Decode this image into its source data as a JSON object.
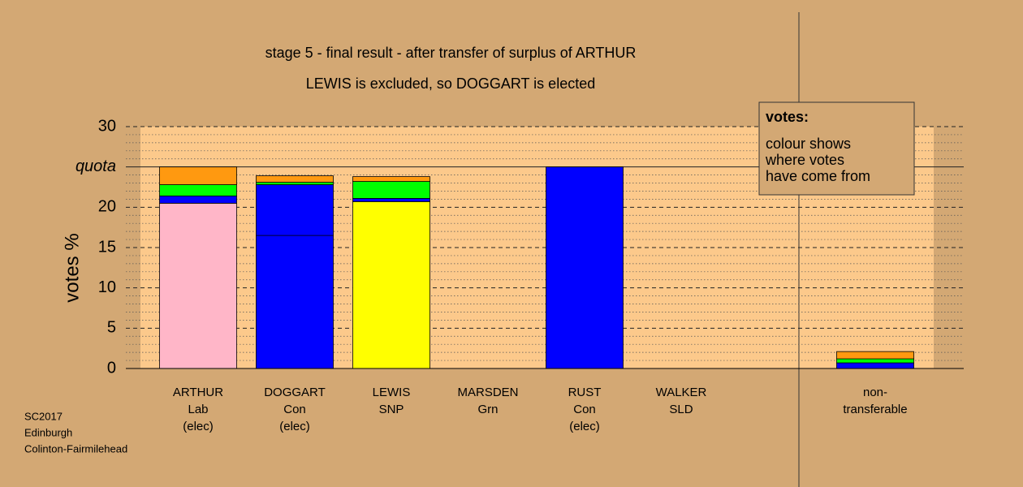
{
  "chart_data": {
    "type": "stacked-bar",
    "title": "stage 5 - final result - after transfer of surplus of ARTHUR",
    "subtitle": "LEWIS is excluded, so DOGGART is elected",
    "y_label": "votes %",
    "categories": [
      [
        "ARTHUR",
        "Lab",
        "(elec)"
      ],
      [
        "DOGGART",
        "Con",
        "(elec)"
      ],
      [
        "LEWIS",
        "SNP"
      ],
      [
        "MARSDEN",
        "Grn"
      ],
      [
        "RUST",
        "Con",
        "(elec)"
      ],
      [
        "WALKER",
        "SLD"
      ],
      [
        "non-",
        "transferable"
      ]
    ],
    "stacks": [
      [
        {
          "value": 20.5,
          "color": "#ffb6c8"
        },
        {
          "value": 0.9,
          "color": "#0000ff"
        },
        {
          "value": 1.4,
          "color": "#00ff00"
        },
        {
          "value": 2.2,
          "color": "#ff9910"
        }
      ],
      [
        {
          "value": 16.5,
          "color": "#0000ff"
        },
        {
          "value": 6.3,
          "color": "#0000ff"
        },
        {
          "value": 0.3,
          "color": "#00ff00"
        },
        {
          "value": 0.8,
          "color": "#ff9910"
        }
      ],
      [
        {
          "value": 20.7,
          "color": "#ffff00"
        },
        {
          "value": 0.4,
          "color": "#0000ff"
        },
        {
          "value": 2.1,
          "color": "#00ff00"
        },
        {
          "value": 0.6,
          "color": "#ff9910"
        }
      ],
      [],
      [
        {
          "value": 25,
          "color": "#0000ff"
        }
      ],
      [],
      [
        {
          "value": 0.7,
          "color": "#0000ff"
        },
        {
          "value": 0.5,
          "color": "#00ff00"
        },
        {
          "value": 0.9,
          "color": "#ff9910"
        }
      ]
    ],
    "ylim": [
      0,
      30
    ],
    "yticks": [
      0,
      5,
      10,
      15,
      20,
      {
        "value": 25,
        "label": "quota"
      },
      30
    ],
    "minor_yticks": [
      1,
      2,
      3,
      4,
      6,
      7,
      8,
      9,
      11,
      12,
      13,
      14,
      16,
      17,
      18,
      19,
      21,
      22,
      23,
      24,
      26,
      27,
      28,
      29
    ],
    "legend_note": {
      "title": "votes:",
      "lines": [
        "colour shows",
        "where votes",
        "have come from"
      ]
    },
    "footer": [
      "SC2017",
      "Edinburgh",
      "Colinton-Fairmilehead"
    ]
  }
}
